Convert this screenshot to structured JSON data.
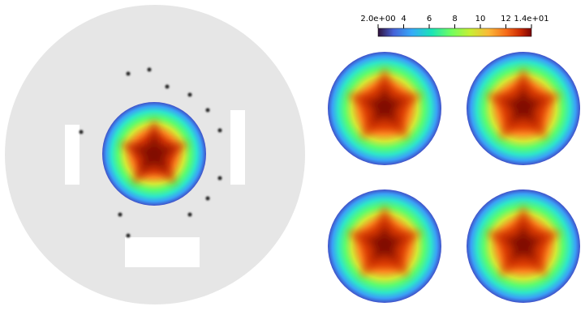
{
  "colorbar": {
    "colormap": "turbo",
    "ticks": [
      "2.0e+00",
      "4",
      "6",
      "8",
      "10",
      "12",
      "1.4e+01"
    ],
    "min": 2.0,
    "max": 14.0
  },
  "colors": {
    "disk": "#e6e6e6",
    "slot": "#ffffff",
    "dot": "#222222",
    "low": "#3b4fd6",
    "high": "#8b0f05"
  },
  "main_panel": {
    "element_count": {
      "rectangles": 3,
      "dots": 13,
      "field_circles": 1
    }
  },
  "small_panels": {
    "count": 4
  }
}
